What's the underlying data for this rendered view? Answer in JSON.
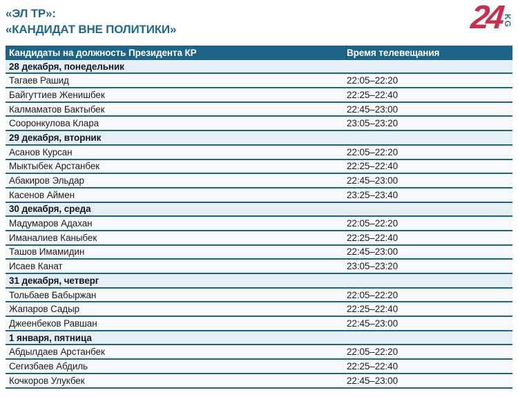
{
  "header": {
    "title_line1": "«ЭЛ ТР»:",
    "title_line2": "«КАНДИДАТ ВНЕ ПОЛИТИКИ»",
    "logo_number": "24",
    "logo_suffix": "KG"
  },
  "colors": {
    "accent_teal": "#1E6486",
    "title_teal": "#21688A",
    "row_border": "#1F6486",
    "section_row_bg": "#E4EEF5",
    "data_row_bg": "#F7FAFC",
    "logo_red": "#C5314E",
    "logo_teal": "#2E7391"
  },
  "table": {
    "columns": [
      "Кандидаты на должность Президента КР",
      "Время телевещания"
    ],
    "rows": [
      {
        "type": "section",
        "label": "28 декабря, понедельник"
      },
      {
        "type": "item",
        "name": "Тагаев Рашид",
        "time": "22:05–22:20"
      },
      {
        "type": "item",
        "name": "Байгуттиев Женишбек",
        "time": "22:25–22:40"
      },
      {
        "type": "item",
        "name": "Калмаматов Бактыбек",
        "time": "22:45–23:00"
      },
      {
        "type": "item",
        "name": "Сооронкулова Клара",
        "time": "23:05–23:20"
      },
      {
        "type": "section",
        "label": "29 декабря, вторник"
      },
      {
        "type": "item",
        "name": "Асанов Курсан",
        "time": "22:05–22:20"
      },
      {
        "type": "item",
        "name": "Мыктыбек Арстанбек",
        "time": "22:25–22:40"
      },
      {
        "type": "item",
        "name": "Абакиров Эльдар",
        "time": "22:45–23:00"
      },
      {
        "type": "item",
        "name": "Касенов Аймен",
        "time": "23:25–23:40"
      },
      {
        "type": "section",
        "label": "30 декабря, среда"
      },
      {
        "type": "item",
        "name": "Мадумаров Адахан",
        "time": "22:05–22:20"
      },
      {
        "type": "item",
        "name": "Иманалиев Каныбек",
        "time": "22:25–22:40"
      },
      {
        "type": "item",
        "name": "Ташов Имамидин",
        "time": "22:45–23:00"
      },
      {
        "type": "item",
        "name": "Исаев Канат",
        "time": "23:05–23:20"
      },
      {
        "type": "section",
        "label": "31 декабря, четверг"
      },
      {
        "type": "item",
        "name": "Тольбаев Бабыржан",
        "time": "22:05–22:20"
      },
      {
        "type": "item",
        "name": "Жапаров Садыр",
        "time": "22:25–22:40"
      },
      {
        "type": "item",
        "name": "Джеенбеков Равшан",
        "time": "22:45–23:00"
      },
      {
        "type": "section",
        "label": "1 января, пятница"
      },
      {
        "type": "item",
        "name": "Абдылдаев Арстанбек",
        "time": "22:05–22:20"
      },
      {
        "type": "item",
        "name": "Сегизбаев Абдиль",
        "time": "22:25–22:40"
      },
      {
        "type": "item",
        "name": "Кочкоров Улукбек",
        "time": "22:45–23:00"
      }
    ]
  }
}
